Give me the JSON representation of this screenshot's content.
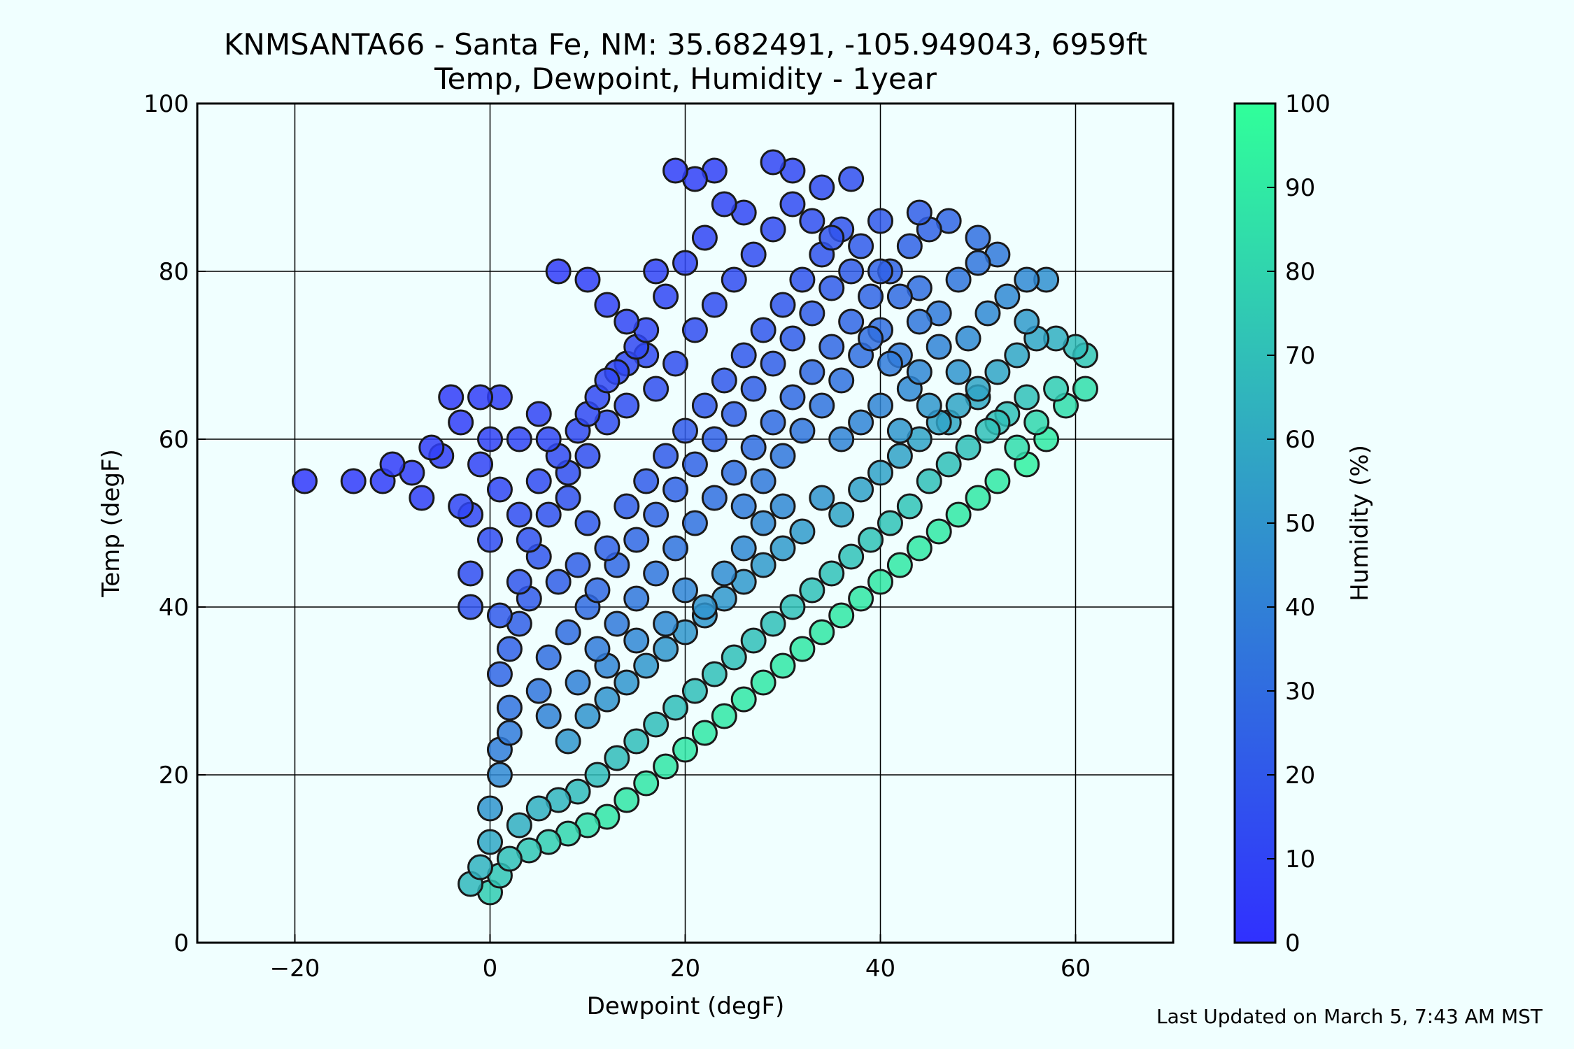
{
  "chart_data": {
    "type": "scatter",
    "title": "KNMSANTA66 - Santa Fe, NM: 35.682491, -105.949043, 6959ft",
    "subtitle": "Temp, Dewpoint, Humidity - 1year",
    "xlabel": "Dewpoint (degF)",
    "ylabel": "Temp (degF)",
    "xlim": [
      -30,
      70
    ],
    "ylim": [
      0,
      100
    ],
    "x_ticks": [
      -20,
      0,
      20,
      40,
      60
    ],
    "x_tick_labels": [
      "−20",
      "0",
      "20",
      "40",
      "60"
    ],
    "y_ticks": [
      0,
      20,
      40,
      60,
      80,
      100
    ],
    "y_tick_labels": [
      "0",
      "20",
      "40",
      "60",
      "80",
      "100"
    ],
    "grid": true,
    "colorbar": {
      "label": "Humidity (%)",
      "range": [
        0,
        100
      ],
      "ticks": [
        0,
        10,
        20,
        30,
        40,
        50,
        60,
        70,
        80,
        90,
        100
      ],
      "tick_labels": [
        "0",
        "10",
        "20",
        "30",
        "40",
        "50",
        "60",
        "70",
        "80",
        "90",
        "100"
      ],
      "color_low": "#3030ff",
      "color_high": "#30ff9a"
    },
    "points": [
      [
        -19,
        55
      ],
      [
        -14,
        55
      ],
      [
        -11,
        55
      ],
      [
        -10,
        57
      ],
      [
        -7,
        53
      ],
      [
        -5,
        58
      ],
      [
        -4,
        65
      ],
      [
        -3,
        52
      ],
      [
        -2,
        51
      ],
      [
        -1,
        65
      ],
      [
        0,
        60
      ],
      [
        1,
        65
      ],
      [
        -2,
        44
      ],
      [
        -2,
        40
      ],
      [
        0,
        48
      ],
      [
        1,
        39
      ],
      [
        3,
        43
      ],
      [
        5,
        55
      ],
      [
        6,
        60
      ],
      [
        8,
        56
      ],
      [
        10,
        58
      ],
      [
        12,
        62
      ],
      [
        14,
        64
      ],
      [
        7,
        80
      ],
      [
        10,
        79
      ],
      [
        12,
        76
      ],
      [
        14,
        74
      ],
      [
        16,
        70
      ],
      [
        17,
        80
      ],
      [
        19,
        92
      ],
      [
        21,
        91
      ],
      [
        23,
        92
      ],
      [
        26,
        87
      ],
      [
        29,
        93
      ],
      [
        31,
        92
      ],
      [
        34,
        90
      ],
      [
        37,
        91
      ],
      [
        35,
        84
      ],
      [
        40,
        86
      ],
      [
        44,
        87
      ],
      [
        47,
        86
      ],
      [
        50,
        84
      ],
      [
        52,
        82
      ],
      [
        55,
        79
      ],
      [
        57,
        79
      ],
      [
        58,
        72
      ],
      [
        60,
        71
      ],
      [
        61,
        70
      ],
      [
        61,
        66
      ],
      [
        59,
        64
      ],
      [
        57,
        60
      ],
      [
        55,
        57
      ],
      [
        52,
        55
      ],
      [
        50,
        53
      ],
      [
        48,
        51
      ],
      [
        46,
        49
      ],
      [
        44,
        47
      ],
      [
        42,
        45
      ],
      [
        40,
        43
      ],
      [
        38,
        41
      ],
      [
        36,
        39
      ],
      [
        34,
        37
      ],
      [
        32,
        35
      ],
      [
        30,
        33
      ],
      [
        28,
        31
      ],
      [
        26,
        29
      ],
      [
        24,
        27
      ],
      [
        22,
        25
      ],
      [
        20,
        23
      ],
      [
        18,
        21
      ],
      [
        16,
        19
      ],
      [
        14,
        17
      ],
      [
        12,
        15
      ],
      [
        10,
        14
      ],
      [
        8,
        13
      ],
      [
        6,
        12
      ],
      [
        4,
        11
      ],
      [
        2,
        10
      ],
      [
        1,
        8
      ],
      [
        0,
        6
      ],
      [
        -2,
        7
      ],
      [
        -1,
        9
      ],
      [
        0,
        12
      ],
      [
        0,
        16
      ],
      [
        1,
        20
      ],
      [
        1,
        23
      ],
      [
        2,
        25
      ],
      [
        2,
        28
      ],
      [
        1,
        32
      ],
      [
        2,
        35
      ],
      [
        3,
        38
      ],
      [
        4,
        41
      ],
      [
        5,
        30
      ],
      [
        6,
        34
      ],
      [
        8,
        37
      ],
      [
        10,
        40
      ],
      [
        12,
        33
      ],
      [
        15,
        36
      ],
      [
        18,
        38
      ],
      [
        20,
        42
      ],
      [
        22,
        40
      ],
      [
        24,
        44
      ],
      [
        26,
        47
      ],
      [
        28,
        50
      ],
      [
        30,
        52
      ],
      [
        32,
        49
      ],
      [
        34,
        53
      ],
      [
        36,
        51
      ],
      [
        38,
        54
      ],
      [
        40,
        56
      ],
      [
        42,
        58
      ],
      [
        44,
        60
      ],
      [
        46,
        62
      ],
      [
        48,
        64
      ],
      [
        50,
        66
      ],
      [
        52,
        68
      ],
      [
        54,
        70
      ],
      [
        56,
        72
      ],
      [
        45,
        55
      ],
      [
        47,
        57
      ],
      [
        49,
        59
      ],
      [
        51,
        61
      ],
      [
        53,
        63
      ],
      [
        55,
        65
      ],
      [
        43,
        52
      ],
      [
        41,
        50
      ],
      [
        39,
        48
      ],
      [
        37,
        46
      ],
      [
        35,
        44
      ],
      [
        33,
        42
      ],
      [
        31,
        40
      ],
      [
        29,
        38
      ],
      [
        27,
        36
      ],
      [
        25,
        34
      ],
      [
        23,
        32
      ],
      [
        21,
        30
      ],
      [
        19,
        28
      ],
      [
        17,
        26
      ],
      [
        15,
        24
      ],
      [
        13,
        22
      ],
      [
        11,
        20
      ],
      [
        9,
        18
      ],
      [
        7,
        17
      ],
      [
        5,
        16
      ],
      [
        3,
        14
      ],
      [
        8,
        24
      ],
      [
        10,
        27
      ],
      [
        12,
        29
      ],
      [
        14,
        31
      ],
      [
        16,
        33
      ],
      [
        18,
        35
      ],
      [
        20,
        37
      ],
      [
        22,
        39
      ],
      [
        24,
        41
      ],
      [
        26,
        43
      ],
      [
        28,
        45
      ],
      [
        30,
        47
      ],
      [
        6,
        27
      ],
      [
        9,
        31
      ],
      [
        11,
        35
      ],
      [
        13,
        38
      ],
      [
        15,
        41
      ],
      [
        17,
        44
      ],
      [
        19,
        47
      ],
      [
        21,
        50
      ],
      [
        23,
        53
      ],
      [
        25,
        56
      ],
      [
        27,
        59
      ],
      [
        29,
        62
      ],
      [
        31,
        65
      ],
      [
        33,
        68
      ],
      [
        35,
        71
      ],
      [
        37,
        74
      ],
      [
        39,
        77
      ],
      [
        41,
        80
      ],
      [
        43,
        83
      ],
      [
        45,
        85
      ],
      [
        4,
        48
      ],
      [
        6,
        51
      ],
      [
        8,
        53
      ],
      [
        10,
        50
      ],
      [
        12,
        47
      ],
      [
        14,
        52
      ],
      [
        16,
        55
      ],
      [
        18,
        58
      ],
      [
        20,
        61
      ],
      [
        22,
        64
      ],
      [
        24,
        67
      ],
      [
        26,
        70
      ],
      [
        28,
        73
      ],
      [
        30,
        76
      ],
      [
        32,
        79
      ],
      [
        34,
        82
      ],
      [
        36,
        85
      ],
      [
        38,
        83
      ],
      [
        40,
        80
      ],
      [
        42,
        77
      ],
      [
        44,
        74
      ],
      [
        46,
        71
      ],
      [
        48,
        68
      ],
      [
        50,
        65
      ],
      [
        52,
        62
      ],
      [
        54,
        59
      ],
      [
        56,
        62
      ],
      [
        58,
        66
      ],
      [
        3,
        60
      ],
      [
        5,
        63
      ],
      [
        7,
        58
      ],
      [
        9,
        61
      ],
      [
        11,
        65
      ],
      [
        13,
        68
      ],
      [
        15,
        71
      ],
      [
        17,
        66
      ],
      [
        19,
        69
      ],
      [
        21,
        73
      ],
      [
        23,
        76
      ],
      [
        25,
        79
      ],
      [
        27,
        82
      ],
      [
        29,
        85
      ],
      [
        31,
        88
      ],
      [
        33,
        86
      ],
      [
        24,
        88
      ],
      [
        22,
        84
      ],
      [
        20,
        81
      ],
      [
        18,
        77
      ],
      [
        16,
        73
      ],
      [
        14,
        69
      ],
      [
        12,
        67
      ],
      [
        10,
        63
      ],
      [
        -6,
        59
      ],
      [
        -8,
        56
      ],
      [
        -3,
        62
      ],
      [
        -1,
        57
      ],
      [
        1,
        54
      ],
      [
        3,
        51
      ],
      [
        5,
        46
      ],
      [
        7,
        43
      ],
      [
        9,
        45
      ],
      [
        11,
        42
      ],
      [
        13,
        45
      ],
      [
        15,
        48
      ],
      [
        17,
        51
      ],
      [
        19,
        54
      ],
      [
        21,
        57
      ],
      [
        23,
        60
      ],
      [
        25,
        63
      ],
      [
        27,
        66
      ],
      [
        29,
        69
      ],
      [
        31,
        72
      ],
      [
        33,
        75
      ],
      [
        35,
        78
      ],
      [
        37,
        80
      ],
      [
        39,
        72
      ],
      [
        41,
        69
      ],
      [
        43,
        66
      ],
      [
        45,
        64
      ],
      [
        47,
        62
      ],
      [
        49,
        72
      ],
      [
        51,
        75
      ],
      [
        53,
        77
      ],
      [
        55,
        74
      ],
      [
        36,
        60
      ],
      [
        38,
        62
      ],
      [
        40,
        64
      ],
      [
        42,
        61
      ],
      [
        44,
        68
      ],
      [
        46,
        75
      ],
      [
        48,
        79
      ],
      [
        50,
        81
      ],
      [
        26,
        52
      ],
      [
        28,
        55
      ],
      [
        30,
        58
      ],
      [
        32,
        61
      ],
      [
        34,
        64
      ],
      [
        36,
        67
      ],
      [
        38,
        70
      ],
      [
        40,
        73
      ],
      [
        42,
        70
      ],
      [
        44,
        78
      ]
    ]
  }
}
